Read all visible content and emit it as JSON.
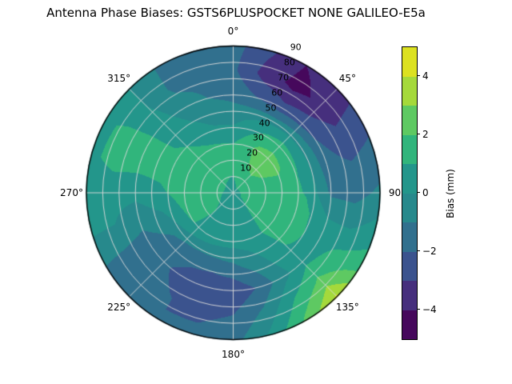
{
  "title": "Antenna Phase Biases: GSTS6PLUSPOCKET NONE GALILEO-E5a",
  "polar": {
    "theta_tick_labels": [
      "0°",
      "45°",
      "90",
      "135°",
      "180°",
      "225°",
      "270°",
      "315°"
    ],
    "theta_tick_angles_deg": [
      0,
      45,
      90,
      135,
      180,
      225,
      270,
      315
    ],
    "r_tick_labels": [
      "10",
      "20",
      "30",
      "40",
      "50",
      "60",
      "70",
      "80",
      "90"
    ],
    "r_tick_values": [
      10,
      20,
      30,
      40,
      50,
      60,
      70,
      80,
      90
    ],
    "r_label_angle_deg": 22.5,
    "r_max": 90
  },
  "colorbar": {
    "label": "Bias (mm)",
    "tick_labels": [
      "4",
      "2",
      "0",
      "−2",
      "−4"
    ],
    "tick_values": [
      4,
      2,
      0,
      -2,
      -4
    ],
    "vmin": -5,
    "vmax": 5,
    "band_colors_low_to_high": [
      "#46085c",
      "#462f7d",
      "#3b538e",
      "#31708e",
      "#27898c",
      "#23968b",
      "#31b57c",
      "#5ec962",
      "#a5d93b",
      "#dce121"
    ]
  },
  "chart_data": {
    "type": "polar_contour",
    "title": "Antenna Phase Biases: GSTS6PLUSPOCKET NONE GALILEO-E5a",
    "value_label": "Bias (mm)",
    "colormap": "viridis",
    "angular_convention": "azimuth 0 deg at top, increasing clockwise",
    "radial_convention": "0 at center to 90 at rim, gridlines every 10",
    "contour_levels": [
      -5,
      -4,
      -3,
      -2,
      -1,
      0,
      1,
      2,
      3,
      4,
      5
    ],
    "azimuth_deg": [
      0,
      15,
      30,
      45,
      60,
      75,
      90,
      105,
      120,
      135,
      150,
      165,
      180,
      195,
      210,
      225,
      240,
      255,
      270,
      285,
      300,
      315,
      330,
      345
    ],
    "radius_rings": [
      0,
      15,
      30,
      45,
      60,
      75,
      90
    ],
    "values_mm": [
      [
        0.7,
        0.7,
        0.7,
        0.7,
        0.7,
        0.7,
        0.7,
        0.7,
        0.7,
        0.7,
        0.7,
        0.7,
        0.7,
        0.7,
        0.7,
        0.7,
        0.7,
        0.7,
        0.7,
        0.7,
        0.7,
        0.7,
        0.7,
        0.7
      ],
      [
        1.1,
        1.5,
        1.9,
        2.0,
        1.9,
        1.8,
        1.7,
        1.6,
        1.5,
        1.1,
        0.8,
        0.6,
        0.5,
        0.6,
        0.8,
        1.0,
        1.2,
        1.3,
        1.4,
        1.5,
        1.5,
        1.4,
        1.3,
        1.2
      ],
      [
        1.0,
        1.6,
        2.3,
        2.5,
        2.3,
        1.8,
        1.6,
        1.7,
        1.7,
        1.3,
        0.8,
        0.5,
        0.4,
        0.5,
        0.7,
        0.9,
        1.1,
        1.3,
        1.5,
        1.6,
        1.6,
        1.4,
        1.2,
        1.1
      ],
      [
        -0.3,
        0.2,
        0.6,
        0.8,
        0.7,
        0.7,
        0.9,
        1.3,
        1.2,
        1.0,
        0.2,
        -0.6,
        -1.2,
        -1.5,
        -1.6,
        -1.4,
        -0.8,
        0.0,
        0.8,
        1.2,
        1.2,
        0.8,
        0.3,
        -0.2
      ],
      [
        -1.3,
        -2.0,
        -2.6,
        -2.4,
        -1.9,
        -1.6,
        -1.2,
        0.0,
        0.6,
        0.7,
        -0.4,
        -1.9,
        -2.8,
        -2.9,
        -2.4,
        -1.8,
        -1.4,
        -0.6,
        0.3,
        1.2,
        1.3,
        0.4,
        -0.5,
        -1.0
      ],
      [
        -1.8,
        -3.4,
        -4.3,
        -3.8,
        -2.8,
        -2.0,
        -1.4,
        -0.2,
        1.2,
        2.2,
        1.0,
        -0.8,
        -2.0,
        -2.2,
        -2.0,
        -1.6,
        -1.2,
        0.0,
        0.4,
        1.3,
        1.2,
        0.0,
        -1.2,
        -1.4
      ],
      [
        -1.6,
        -2.8,
        -4.0,
        -3.6,
        -2.4,
        -1.6,
        -0.8,
        0.4,
        1.6,
        4.2,
        2.2,
        0.2,
        -1.4,
        -1.8,
        -2.0,
        -1.4,
        -1.0,
        0.2,
        0.2,
        0.8,
        0.8,
        0.0,
        -1.2,
        -1.4
      ]
    ]
  },
  "colors": {
    "background": "#ffffff",
    "grid": "#d9d9d9",
    "outline": "#000000",
    "text": "#000000"
  }
}
